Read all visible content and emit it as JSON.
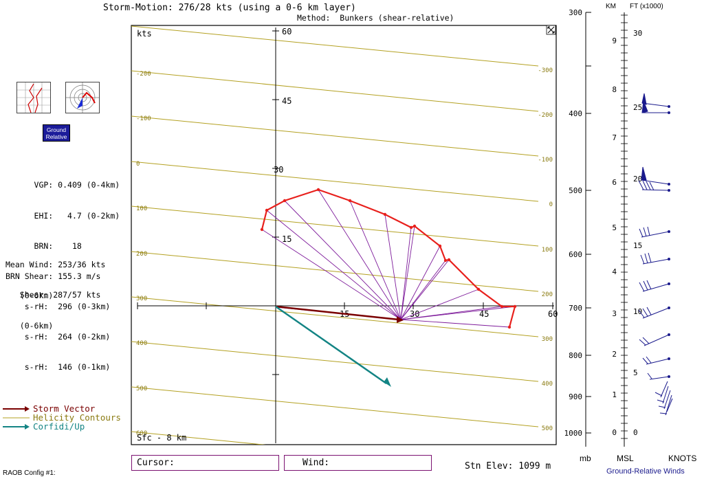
{
  "header": {
    "title": "Storm-Motion: 276/28 kts (using a 0-6 km layer)",
    "method": "Method:  Bunkers (shear-relative)"
  },
  "buttons": {
    "ground_relative": "Ground Relative"
  },
  "stats": [
    {
      "label": "      VGP:",
      "value": " 0.409 (0-4km)"
    },
    {
      "label": "      EHI:",
      "value": "   4.7 (0-2km)"
    },
    {
      "label": "      BRN:",
      "value": "    18"
    },
    {
      "label": "BRN Shear:",
      "value": " 155.3 m/s"
    },
    {
      "label": "    s-rH:",
      "value": "  296 (0-3km)"
    },
    {
      "label": "    s-rH:",
      "value": "  264 (0-2km)"
    },
    {
      "label": "    s-rH:",
      "value": "  146 (0-1km)"
    }
  ],
  "mean_wind": {
    "label": "Mean Wind:",
    "value": "253/36 kts",
    "layer": "(0-6km)"
  },
  "shear": {
    "label": "   Shear:",
    "value": "287/57 kts",
    "layer": "(0-6km)"
  },
  "hodograph": {
    "units_label": "kts",
    "layer_label": "Sfc - 8 km",
    "y_ticks": [
      "60",
      "45",
      "30",
      "15"
    ],
    "x_ticks": [
      "15",
      "30",
      "45",
      "60"
    ],
    "contour_labels_left": [
      "-200",
      "-100",
      "0",
      "100",
      "200",
      "300",
      "400",
      "500",
      "600"
    ],
    "contour_labels_right": [
      "-300",
      "-200",
      "-100",
      "0",
      "100",
      "200",
      "300",
      "400",
      "500"
    ],
    "colors": {
      "hodo_line": "#e8201c",
      "helicity_rays": "#7d1a9a",
      "storm_vector": "#7a0000",
      "contours": "#b3a020",
      "corfidi": "#138484"
    }
  },
  "legend": [
    {
      "label": "Storm Vector",
      "color": "#7a0000"
    },
    {
      "label": "Helicity Contours",
      "color": "#b3a020"
    },
    {
      "label": "Corfidi/Up",
      "color": "#138484"
    }
  ],
  "cursor_box": {
    "label": "Cursor:"
  },
  "wind_box": {
    "label": "Wind:"
  },
  "station": {
    "elevation": "Stn Elev: 1099 m"
  },
  "config": {
    "label": "RAOB Config #1:"
  },
  "pressure_axis": {
    "labels": [
      "300",
      "400",
      "500",
      "600",
      "700",
      "800",
      "900",
      "1000"
    ],
    "unit": "mb"
  },
  "height_axis": {
    "km_header": "KM",
    "ft_header": "FT (x1000)",
    "km_labels": [
      "9",
      "8",
      "7",
      "6",
      "5",
      "4",
      "3",
      "2",
      "1",
      "0"
    ],
    "ft_labels": [
      "30",
      "25",
      "20",
      "15",
      "10",
      "5",
      "0"
    ],
    "msl": "MSL",
    "knots": "KNOTS",
    "title": "Ground-Relative Winds"
  }
}
